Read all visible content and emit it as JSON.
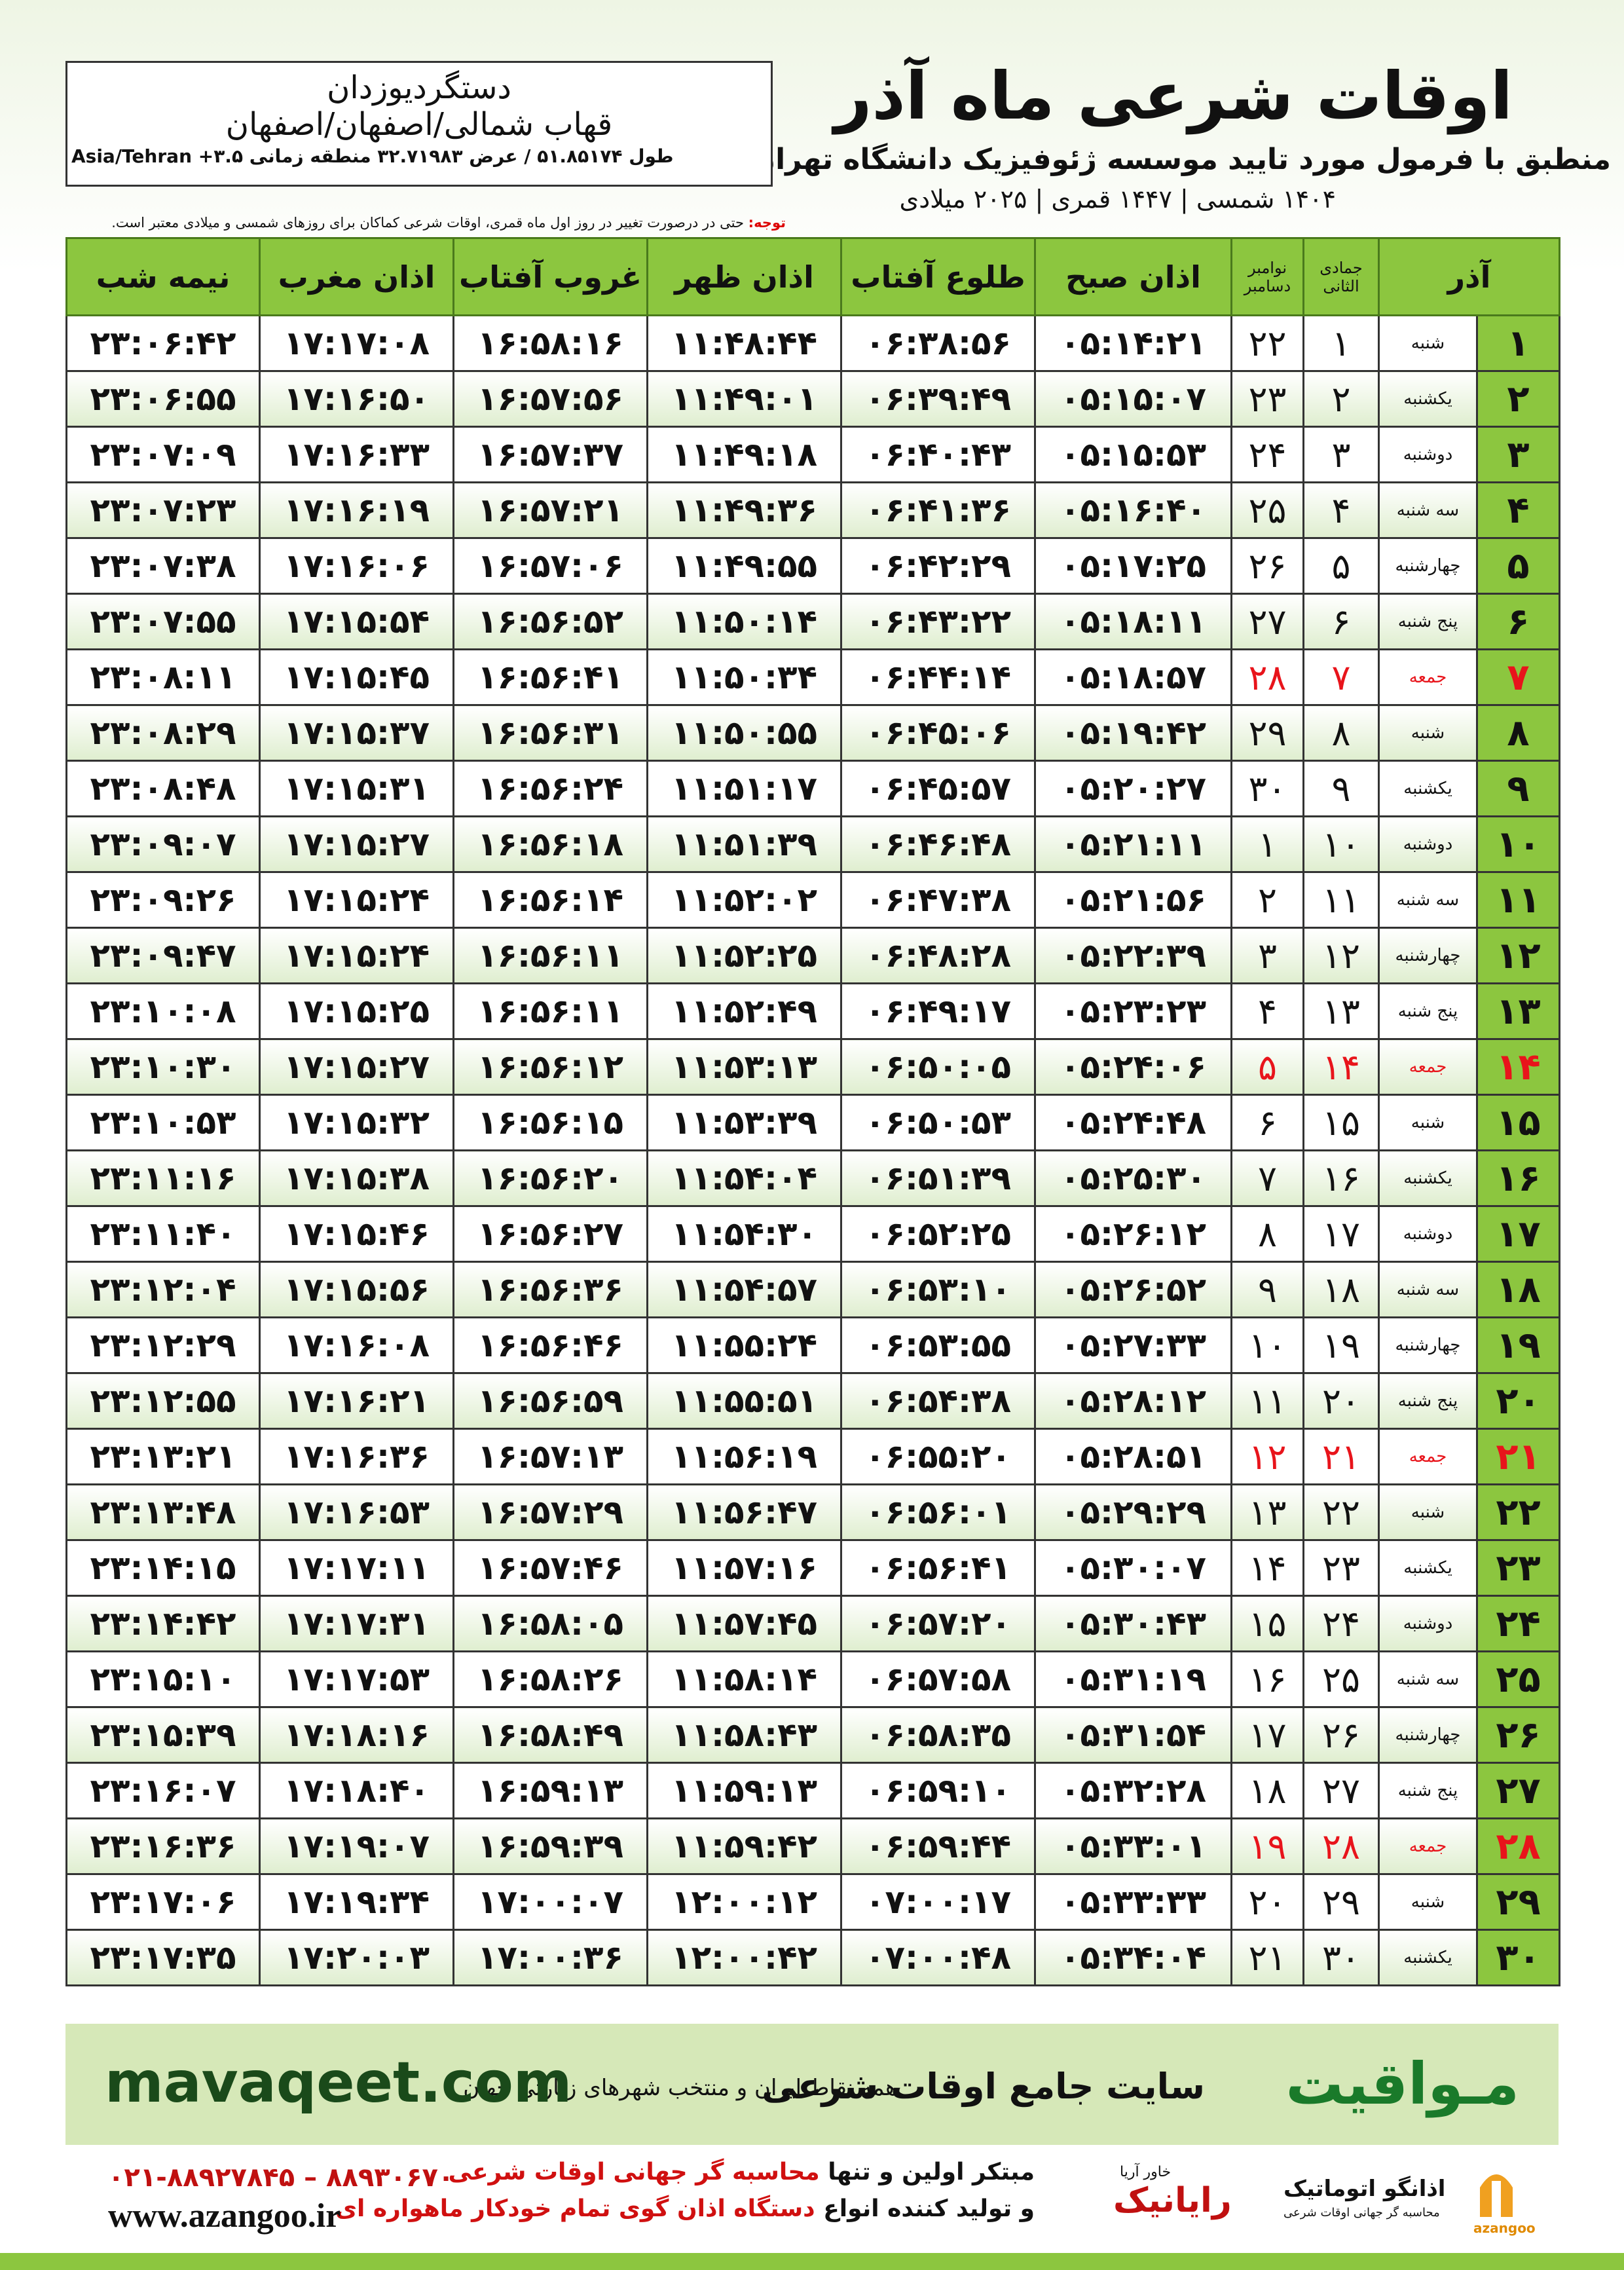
{
  "header": {
    "title": "اوقات شرعی ماه آذر",
    "subtitle": "منطبق با فرمول مورد تایید موسسه ژئوفیزیک دانشگاه تهران",
    "years": "۱۴۰۴ شمسی | ۱۴۴۷ قمری | ۲۰۲۵ میلادی"
  },
  "location": {
    "name": "دستگردیوزدان",
    "region": "قهاب شمالی/اصفهان/اصفهان",
    "coords": "طول ۵۱.۸۵۱۷۴ / عرض ۳۲.۷۱۹۸۳ منطقه زمانی ۳.۵+ Asia/Tehran"
  },
  "note": {
    "label": "توجه:",
    "text": "حتی در درصورت تغییر در روز اول ماه قمری، اوقات شرعی کماکان برای روزهای شمسی و میلادی معتبر است."
  },
  "table": {
    "columns": {
      "month": "آذر",
      "qamari": "جمادی الثانی",
      "gregorian_top": "نوامبر",
      "gregorian_bottom": "دسامبر",
      "times": [
        "اذان صبح",
        "طلوع آفتاب",
        "اذان ظهر",
        "غروب آفتاب",
        "اذان مغرب",
        "نیمه شب"
      ]
    },
    "holiday_color": "#e8141b",
    "rows": [
      {
        "day": "۱",
        "weekday": "شنبه",
        "qamari": "۱",
        "gregorian": "۲۲",
        "times": [
          "۰۵:۱۴:۲۱",
          "۰۶:۳۸:۵۶",
          "۱۱:۴۸:۴۴",
          "۱۶:۵۸:۱۶",
          "۱۷:۱۷:۰۸",
          "۲۳:۰۶:۴۲"
        ]
      },
      {
        "day": "۲",
        "weekday": "یکشنبه",
        "qamari": "۲",
        "gregorian": "۲۳",
        "times": [
          "۰۵:۱۵:۰۷",
          "۰۶:۳۹:۴۹",
          "۱۱:۴۹:۰۱",
          "۱۶:۵۷:۵۶",
          "۱۷:۱۶:۵۰",
          "۲۳:۰۶:۵۵"
        ]
      },
      {
        "day": "۳",
        "weekday": "دوشنبه",
        "qamari": "۳",
        "gregorian": "۲۴",
        "times": [
          "۰۵:۱۵:۵۳",
          "۰۶:۴۰:۴۳",
          "۱۱:۴۹:۱۸",
          "۱۶:۵۷:۳۷",
          "۱۷:۱۶:۳۳",
          "۲۳:۰۷:۰۹"
        ]
      },
      {
        "day": "۴",
        "weekday": "سه شنبه",
        "qamari": "۴",
        "gregorian": "۲۵",
        "times": [
          "۰۵:۱۶:۴۰",
          "۰۶:۴۱:۳۶",
          "۱۱:۴۹:۳۶",
          "۱۶:۵۷:۲۱",
          "۱۷:۱۶:۱۹",
          "۲۳:۰۷:۲۳"
        ]
      },
      {
        "day": "۵",
        "weekday": "چهارشنبه",
        "qamari": "۵",
        "gregorian": "۲۶",
        "times": [
          "۰۵:۱۷:۲۵",
          "۰۶:۴۲:۲۹",
          "۱۱:۴۹:۵۵",
          "۱۶:۵۷:۰۶",
          "۱۷:۱۶:۰۶",
          "۲۳:۰۷:۳۸"
        ]
      },
      {
        "day": "۶",
        "weekday": "پنج شنبه",
        "qamari": "۶",
        "gregorian": "۲۷",
        "times": [
          "۰۵:۱۸:۱۱",
          "۰۶:۴۳:۲۲",
          "۱۱:۵۰:۱۴",
          "۱۶:۵۶:۵۲",
          "۱۷:۱۵:۵۴",
          "۲۳:۰۷:۵۵"
        ]
      },
      {
        "day": "۷",
        "weekday": "جمعه",
        "qamari": "۷",
        "gregorian": "۲۸",
        "holiday": true,
        "times": [
          "۰۵:۱۸:۵۷",
          "۰۶:۴۴:۱۴",
          "۱۱:۵۰:۳۴",
          "۱۶:۵۶:۴۱",
          "۱۷:۱۵:۴۵",
          "۲۳:۰۸:۱۱"
        ]
      },
      {
        "day": "۸",
        "weekday": "شنبه",
        "qamari": "۸",
        "gregorian": "۲۹",
        "times": [
          "۰۵:۱۹:۴۲",
          "۰۶:۴۵:۰۶",
          "۱۱:۵۰:۵۵",
          "۱۶:۵۶:۳۱",
          "۱۷:۱۵:۳۷",
          "۲۳:۰۸:۲۹"
        ]
      },
      {
        "day": "۹",
        "weekday": "یکشنبه",
        "qamari": "۹",
        "gregorian": "۳۰",
        "times": [
          "۰۵:۲۰:۲۷",
          "۰۶:۴۵:۵۷",
          "۱۱:۵۱:۱۷",
          "۱۶:۵۶:۲۴",
          "۱۷:۱۵:۳۱",
          "۲۳:۰۸:۴۸"
        ]
      },
      {
        "day": "۱۰",
        "weekday": "دوشنبه",
        "qamari": "۱۰",
        "gregorian": "۱",
        "times": [
          "۰۵:۲۱:۱۱",
          "۰۶:۴۶:۴۸",
          "۱۱:۵۱:۳۹",
          "۱۶:۵۶:۱۸",
          "۱۷:۱۵:۲۷",
          "۲۳:۰۹:۰۷"
        ]
      },
      {
        "day": "۱۱",
        "weekday": "سه شنبه",
        "qamari": "۱۱",
        "gregorian": "۲",
        "times": [
          "۰۵:۲۱:۵۶",
          "۰۶:۴۷:۳۸",
          "۱۱:۵۲:۰۲",
          "۱۶:۵۶:۱۴",
          "۱۷:۱۵:۲۴",
          "۲۳:۰۹:۲۶"
        ]
      },
      {
        "day": "۱۲",
        "weekday": "چهارشنبه",
        "qamari": "۱۲",
        "gregorian": "۳",
        "times": [
          "۰۵:۲۲:۳۹",
          "۰۶:۴۸:۲۸",
          "۱۱:۵۲:۲۵",
          "۱۶:۵۶:۱۱",
          "۱۷:۱۵:۲۴",
          "۲۳:۰۹:۴۷"
        ]
      },
      {
        "day": "۱۳",
        "weekday": "پنج شنبه",
        "qamari": "۱۳",
        "gregorian": "۴",
        "times": [
          "۰۵:۲۳:۲۳",
          "۰۶:۴۹:۱۷",
          "۱۱:۵۲:۴۹",
          "۱۶:۵۶:۱۱",
          "۱۷:۱۵:۲۵",
          "۲۳:۱۰:۰۸"
        ]
      },
      {
        "day": "۱۴",
        "weekday": "جمعه",
        "qamari": "۱۴",
        "gregorian": "۵",
        "holiday": true,
        "times": [
          "۰۵:۲۴:۰۶",
          "۰۶:۵۰:۰۵",
          "۱۱:۵۳:۱۳",
          "۱۶:۵۶:۱۲",
          "۱۷:۱۵:۲۷",
          "۲۳:۱۰:۳۰"
        ]
      },
      {
        "day": "۱۵",
        "weekday": "شنبه",
        "qamari": "۱۵",
        "gregorian": "۶",
        "times": [
          "۰۵:۲۴:۴۸",
          "۰۶:۵۰:۵۳",
          "۱۱:۵۳:۳۹",
          "۱۶:۵۶:۱۵",
          "۱۷:۱۵:۳۲",
          "۲۳:۱۰:۵۳"
        ]
      },
      {
        "day": "۱۶",
        "weekday": "یکشنبه",
        "qamari": "۱۶",
        "gregorian": "۷",
        "times": [
          "۰۵:۲۵:۳۰",
          "۰۶:۵۱:۳۹",
          "۱۱:۵۴:۰۴",
          "۱۶:۵۶:۲۰",
          "۱۷:۱۵:۳۸",
          "۲۳:۱۱:۱۶"
        ]
      },
      {
        "day": "۱۷",
        "weekday": "دوشنبه",
        "qamari": "۱۷",
        "gregorian": "۸",
        "times": [
          "۰۵:۲۶:۱۲",
          "۰۶:۵۲:۲۵",
          "۱۱:۵۴:۳۰",
          "۱۶:۵۶:۲۷",
          "۱۷:۱۵:۴۶",
          "۲۳:۱۱:۴۰"
        ]
      },
      {
        "day": "۱۸",
        "weekday": "سه شنبه",
        "qamari": "۱۸",
        "gregorian": "۹",
        "times": [
          "۰۵:۲۶:۵۲",
          "۰۶:۵۳:۱۰",
          "۱۱:۵۴:۵۷",
          "۱۶:۵۶:۳۶",
          "۱۷:۱۵:۵۶",
          "۲۳:۱۲:۰۴"
        ]
      },
      {
        "day": "۱۹",
        "weekday": "چهارشنبه",
        "qamari": "۱۹",
        "gregorian": "۱۰",
        "times": [
          "۰۵:۲۷:۳۳",
          "۰۶:۵۳:۵۵",
          "۱۱:۵۵:۲۴",
          "۱۶:۵۶:۴۶",
          "۱۷:۱۶:۰۸",
          "۲۳:۱۲:۲۹"
        ]
      },
      {
        "day": "۲۰",
        "weekday": "پنج شنبه",
        "qamari": "۲۰",
        "gregorian": "۱۱",
        "times": [
          "۰۵:۲۸:۱۲",
          "۰۶:۵۴:۳۸",
          "۱۱:۵۵:۵۱",
          "۱۶:۵۶:۵۹",
          "۱۷:۱۶:۲۱",
          "۲۳:۱۲:۵۵"
        ]
      },
      {
        "day": "۲۱",
        "weekday": "جمعه",
        "qamari": "۲۱",
        "gregorian": "۱۲",
        "holiday": true,
        "times": [
          "۰۵:۲۸:۵۱",
          "۰۶:۵۵:۲۰",
          "۱۱:۵۶:۱۹",
          "۱۶:۵۷:۱۳",
          "۱۷:۱۶:۳۶",
          "۲۳:۱۳:۲۱"
        ]
      },
      {
        "day": "۲۲",
        "weekday": "شنبه",
        "qamari": "۲۲",
        "gregorian": "۱۳",
        "times": [
          "۰۵:۲۹:۲۹",
          "۰۶:۵۶:۰۱",
          "۱۱:۵۶:۴۷",
          "۱۶:۵۷:۲۹",
          "۱۷:۱۶:۵۳",
          "۲۳:۱۳:۴۸"
        ]
      },
      {
        "day": "۲۳",
        "weekday": "یکشنبه",
        "qamari": "۲۳",
        "gregorian": "۱۴",
        "times": [
          "۰۵:۳۰:۰۷",
          "۰۶:۵۶:۴۱",
          "۱۱:۵۷:۱۶",
          "۱۶:۵۷:۴۶",
          "۱۷:۱۷:۱۱",
          "۲۳:۱۴:۱۵"
        ]
      },
      {
        "day": "۲۴",
        "weekday": "دوشنبه",
        "qamari": "۲۴",
        "gregorian": "۱۵",
        "times": [
          "۰۵:۳۰:۴۳",
          "۰۶:۵۷:۲۰",
          "۱۱:۵۷:۴۵",
          "۱۶:۵۸:۰۵",
          "۱۷:۱۷:۳۱",
          "۲۳:۱۴:۴۲"
        ]
      },
      {
        "day": "۲۵",
        "weekday": "سه شنبه",
        "qamari": "۲۵",
        "gregorian": "۱۶",
        "times": [
          "۰۵:۳۱:۱۹",
          "۰۶:۵۷:۵۸",
          "۱۱:۵۸:۱۴",
          "۱۶:۵۸:۲۶",
          "۱۷:۱۷:۵۳",
          "۲۳:۱۵:۱۰"
        ]
      },
      {
        "day": "۲۶",
        "weekday": "چهارشنبه",
        "qamari": "۲۶",
        "gregorian": "۱۷",
        "times": [
          "۰۵:۳۱:۵۴",
          "۰۶:۵۸:۳۵",
          "۱۱:۵۸:۴۳",
          "۱۶:۵۸:۴۹",
          "۱۷:۱۸:۱۶",
          "۲۳:۱۵:۳۹"
        ]
      },
      {
        "day": "۲۷",
        "weekday": "پنج شنبه",
        "qamari": "۲۷",
        "gregorian": "۱۸",
        "times": [
          "۰۵:۳۲:۲۸",
          "۰۶:۵۹:۱۰",
          "۱۱:۵۹:۱۳",
          "۱۶:۵۹:۱۳",
          "۱۷:۱۸:۴۰",
          "۲۳:۱۶:۰۷"
        ]
      },
      {
        "day": "۲۸",
        "weekday": "جمعه",
        "qamari": "۲۸",
        "gregorian": "۱۹",
        "holiday": true,
        "times": [
          "۰۵:۳۳:۰۱",
          "۰۶:۵۹:۴۴",
          "۱۱:۵۹:۴۲",
          "۱۶:۵۹:۳۹",
          "۱۷:۱۹:۰۷",
          "۲۳:۱۶:۳۶"
        ]
      },
      {
        "day": "۲۹",
        "weekday": "شنبه",
        "qamari": "۲۹",
        "gregorian": "۲۰",
        "times": [
          "۰۵:۳۳:۳۳",
          "۰۷:۰۰:۱۷",
          "۱۲:۰۰:۱۲",
          "۱۷:۰۰:۰۷",
          "۱۷:۱۹:۳۴",
          "۲۳:۱۷:۰۶"
        ]
      },
      {
        "day": "۳۰",
        "weekday": "یکشنبه",
        "qamari": "۳۰",
        "gregorian": "۲۱",
        "times": [
          "۰۵:۳۴:۰۴",
          "۰۷:۰۰:۴۸",
          "۱۲:۰۰:۴۲",
          "۱۷:۰۰:۳۶",
          "۱۷:۲۰:۰۳",
          "۲۳:۱۷:۳۵"
        ]
      }
    ]
  },
  "banner": {
    "brand": "مـواقیت",
    "tagline": "سایت جامع اوقات شرعی",
    "desc": "همه نقاط ایران و منتخب شهرهای زیارتی جهان",
    "url": "mavaqeet.com"
  },
  "footer": {
    "line1_a": "مبتکر اولین و تنها",
    "line1_b": "محاسبه گر جهانی اوقات شرعی",
    "line2_a": "و تولید کننده انواع",
    "line2_b": "دستگاه اذان گوی تمام خودکار ماهواره ای",
    "phone": "۰۲۱-۸۸۹۲۷۸۴۵ – ۸۸۹۳۰۶۷۰",
    "website": "www.azangoo.ir",
    "logo1": "رایانیک",
    "logo1_sub": "خاور آریا",
    "logo2": "اذانگو اتوماتیک",
    "logo2_sub": "محاسبه گر جهانی اوقات شرعی",
    "logo2_en": "azangoo"
  }
}
